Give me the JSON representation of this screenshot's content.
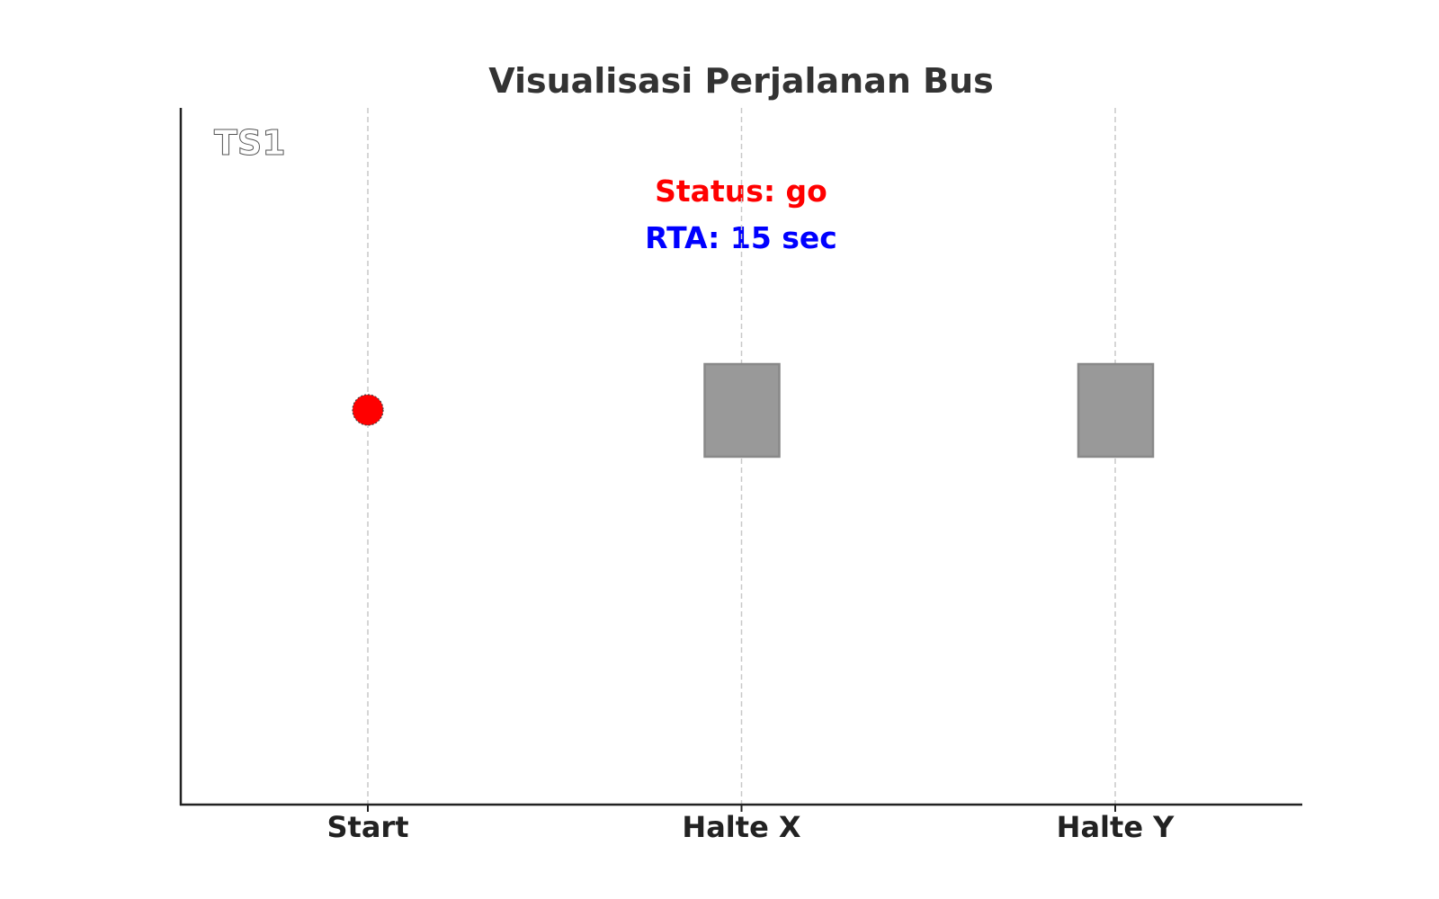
{
  "chart_data": {
    "type": "scatter",
    "title": "Visualisasi Perjalanan Bus",
    "corner_label": "TS1",
    "categories": [
      "Start",
      "Halte X",
      "Halte Y"
    ],
    "grid": "vertical dashed at each category",
    "bus": {
      "position": "Start",
      "marker": "circle",
      "color": "#ff0000"
    },
    "stops": [
      {
        "at": "Halte X",
        "marker": "rectangle",
        "color": "#999999"
      },
      {
        "at": "Halte Y",
        "marker": "rectangle",
        "color": "#999999"
      }
    ],
    "status_label": "Status: go",
    "status_color": "#ff0000",
    "rta_label": "RTA: 15 sec",
    "rta_color": "#0000ff"
  }
}
